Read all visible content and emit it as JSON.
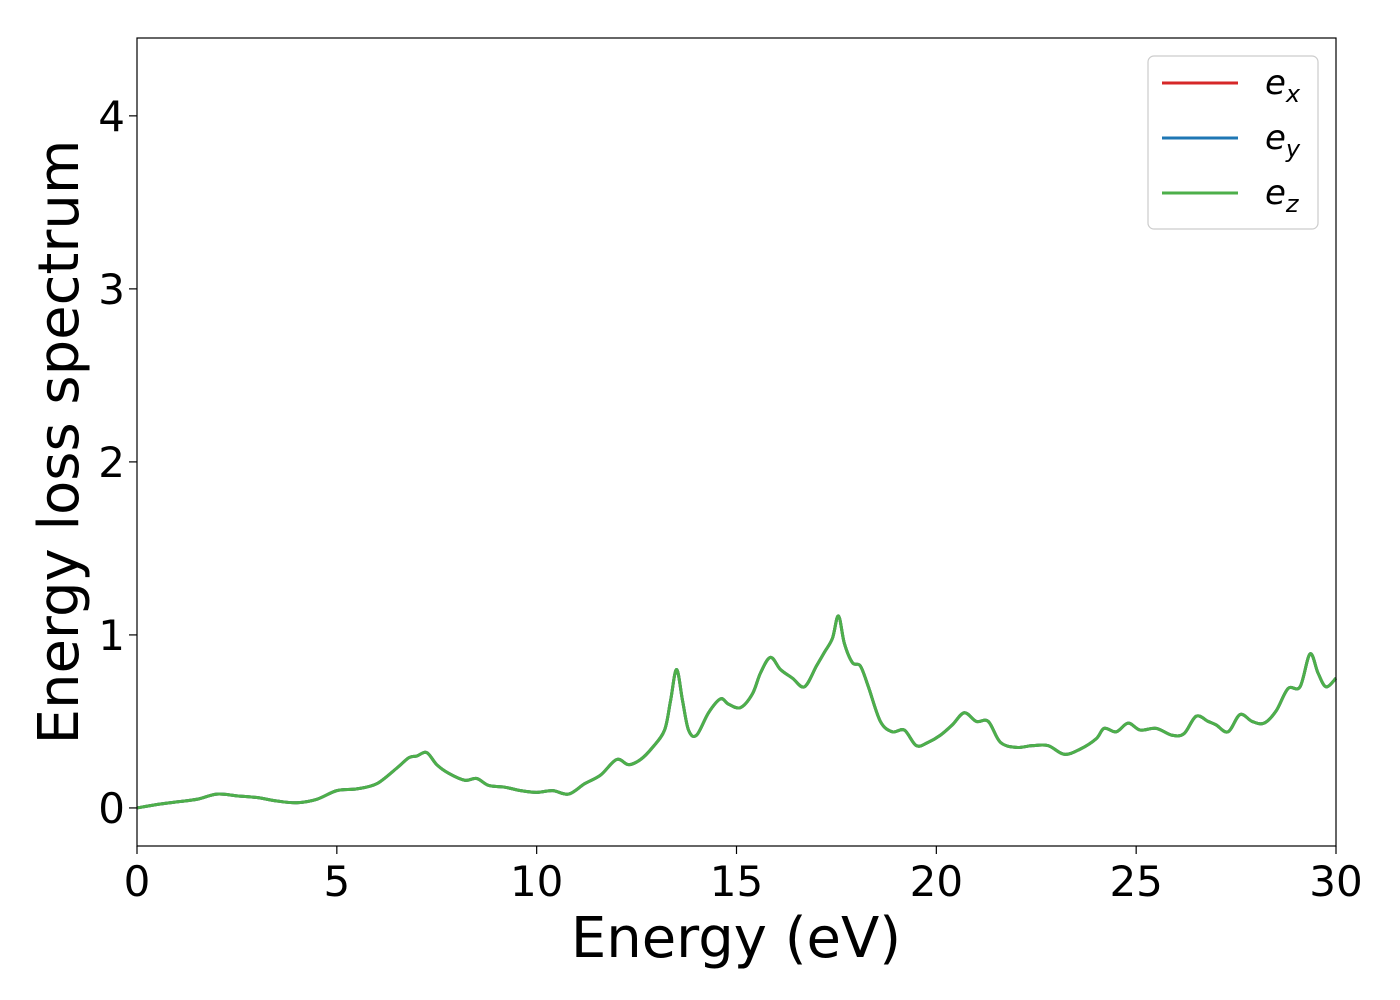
{
  "chart_data": {
    "type": "line",
    "title": "",
    "xlabel": "Energy (eV)",
    "ylabel": "Energy loss spectrum",
    "xlim": [
      0,
      30
    ],
    "ylim": [
      -0.22,
      4.45
    ],
    "xticks": [
      0,
      5,
      10,
      15,
      20,
      25,
      30
    ],
    "yticks": [
      0,
      1,
      2,
      3,
      4
    ],
    "xtick_labels": [
      "0",
      "5",
      "10",
      "15",
      "20",
      "25",
      "30"
    ],
    "ytick_labels": [
      "0",
      "1",
      "2",
      "3",
      "4"
    ],
    "grid": false,
    "legend_position": "top-right",
    "x": [
      0,
      0.5,
      1.0,
      1.5,
      2.0,
      2.5,
      3.0,
      3.5,
      4.0,
      4.5,
      5.0,
      5.5,
      6.0,
      6.5,
      6.8,
      7.0,
      7.25,
      7.5,
      7.8,
      8.2,
      8.5,
      8.8,
      9.2,
      9.6,
      10.0,
      10.4,
      10.8,
      11.2,
      11.6,
      12.0,
      12.3,
      12.6,
      12.9,
      13.2,
      13.35,
      13.5,
      13.65,
      13.8,
      14.0,
      14.3,
      14.6,
      14.8,
      15.1,
      15.4,
      15.6,
      15.85,
      16.1,
      16.4,
      16.7,
      17.0,
      17.2,
      17.4,
      17.55,
      17.7,
      17.9,
      18.1,
      18.3,
      18.6,
      18.9,
      19.2,
      19.5,
      19.8,
      20.1,
      20.4,
      20.7,
      21.0,
      21.3,
      21.6,
      22.0,
      22.4,
      22.8,
      23.2,
      23.6,
      24.0,
      24.2,
      24.5,
      24.8,
      25.1,
      25.5,
      25.9,
      26.2,
      26.5,
      26.8,
      27.0,
      27.3,
      27.6,
      27.9,
      28.2,
      28.5,
      28.8,
      29.1,
      29.35,
      29.55,
      29.75,
      30.0
    ],
    "series": [
      {
        "name": "e_x",
        "color": "#d62728",
        "values": [
          0.0,
          0.02,
          0.035,
          0.05,
          0.08,
          0.07,
          0.06,
          0.04,
          0.03,
          0.05,
          0.1,
          0.11,
          0.14,
          0.23,
          0.29,
          0.3,
          0.32,
          0.25,
          0.2,
          0.16,
          0.17,
          0.13,
          0.12,
          0.1,
          0.09,
          0.1,
          0.08,
          0.14,
          0.19,
          0.28,
          0.25,
          0.28,
          0.35,
          0.45,
          0.62,
          0.8,
          0.62,
          0.45,
          0.42,
          0.55,
          0.63,
          0.6,
          0.58,
          0.66,
          0.78,
          0.87,
          0.8,
          0.75,
          0.7,
          0.82,
          0.9,
          0.98,
          1.11,
          0.95,
          0.84,
          0.82,
          0.7,
          0.5,
          0.44,
          0.45,
          0.36,
          0.38,
          0.42,
          0.48,
          0.55,
          0.5,
          0.5,
          0.38,
          0.35,
          0.36,
          0.36,
          0.31,
          0.34,
          0.4,
          0.46,
          0.44,
          0.49,
          0.45,
          0.46,
          0.42,
          0.43,
          0.53,
          0.5,
          0.48,
          0.44,
          0.54,
          0.5,
          0.49,
          0.56,
          0.69,
          0.7,
          0.89,
          0.78,
          0.7,
          0.75
        ]
      },
      {
        "name": "e_y",
        "color": "#1f77b4",
        "values": [
          0.0,
          0.02,
          0.035,
          0.05,
          0.08,
          0.07,
          0.06,
          0.04,
          0.03,
          0.05,
          0.1,
          0.11,
          0.14,
          0.23,
          0.29,
          0.3,
          0.32,
          0.25,
          0.2,
          0.16,
          0.17,
          0.13,
          0.12,
          0.1,
          0.09,
          0.1,
          0.08,
          0.14,
          0.19,
          0.28,
          0.25,
          0.28,
          0.35,
          0.45,
          0.62,
          0.8,
          0.62,
          0.45,
          0.42,
          0.55,
          0.63,
          0.6,
          0.58,
          0.66,
          0.78,
          0.87,
          0.8,
          0.75,
          0.7,
          0.82,
          0.9,
          0.98,
          1.11,
          0.95,
          0.84,
          0.82,
          0.7,
          0.5,
          0.44,
          0.45,
          0.36,
          0.38,
          0.42,
          0.48,
          0.55,
          0.5,
          0.5,
          0.38,
          0.35,
          0.36,
          0.36,
          0.31,
          0.34,
          0.4,
          0.46,
          0.44,
          0.49,
          0.45,
          0.46,
          0.42,
          0.43,
          0.53,
          0.5,
          0.48,
          0.44,
          0.54,
          0.5,
          0.49,
          0.56,
          0.69,
          0.7,
          0.89,
          0.78,
          0.7,
          0.75
        ]
      },
      {
        "name": "e_z",
        "color": "#4daf4a",
        "values": [
          0.0,
          0.02,
          0.035,
          0.05,
          0.08,
          0.07,
          0.06,
          0.04,
          0.03,
          0.05,
          0.1,
          0.11,
          0.14,
          0.23,
          0.29,
          0.3,
          0.32,
          0.25,
          0.2,
          0.16,
          0.17,
          0.13,
          0.12,
          0.1,
          0.09,
          0.1,
          0.08,
          0.14,
          0.19,
          0.28,
          0.25,
          0.28,
          0.35,
          0.45,
          0.62,
          0.8,
          0.62,
          0.45,
          0.42,
          0.55,
          0.63,
          0.6,
          0.58,
          0.66,
          0.78,
          0.87,
          0.8,
          0.75,
          0.7,
          0.82,
          0.9,
          0.98,
          1.11,
          0.95,
          0.84,
          0.82,
          0.7,
          0.5,
          0.44,
          0.45,
          0.36,
          0.38,
          0.42,
          0.48,
          0.55,
          0.5,
          0.5,
          0.38,
          0.35,
          0.36,
          0.36,
          0.31,
          0.34,
          0.4,
          0.46,
          0.44,
          0.49,
          0.45,
          0.46,
          0.42,
          0.43,
          0.53,
          0.5,
          0.48,
          0.44,
          0.54,
          0.5,
          0.49,
          0.56,
          0.69,
          0.7,
          0.89,
          0.78,
          0.7,
          0.75
        ]
      }
    ],
    "legend": [
      {
        "base": "e",
        "sub": "x",
        "color": "#d62728"
      },
      {
        "base": "e",
        "sub": "y",
        "color": "#1f77b4"
      },
      {
        "base": "e",
        "sub": "z",
        "color": "#4daf4a"
      }
    ]
  }
}
